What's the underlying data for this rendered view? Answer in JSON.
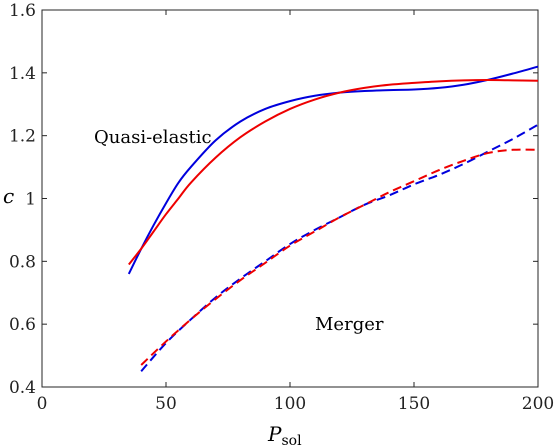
{
  "chart_data": {
    "type": "line",
    "title": "",
    "xlabel": "P",
    "xlabel_sub": "sol",
    "ylabel": "c",
    "xlim": [
      0,
      200
    ],
    "ylim": [
      0.4,
      1.6
    ],
    "xticks": [
      0,
      50,
      100,
      150,
      200
    ],
    "yticks": [
      0.4,
      0.6,
      0.8,
      1,
      1.2,
      1.4,
      1.6
    ],
    "xtick_labels": [
      "0",
      "50",
      "100",
      "150",
      "200"
    ],
    "ytick_labels": [
      "0.4",
      "0.6",
      "0.8",
      "1",
      "1.2",
      "1.4",
      "1.6"
    ],
    "grid": false,
    "legend": "none",
    "annotations": [
      {
        "text": "Quasi-elastic",
        "x": 20,
        "y": 1.2
      },
      {
        "text": "Merger",
        "x": 110,
        "y": 0.6
      }
    ],
    "series": [
      {
        "style": "solid",
        "color": "#0000dd",
        "x": [
          35,
          40,
          45,
          50,
          55,
          60,
          70,
          80,
          90,
          100,
          110,
          120,
          130,
          140,
          150,
          160,
          170,
          180,
          190,
          200
        ],
        "y": [
          0.76,
          0.84,
          0.915,
          0.985,
          1.05,
          1.1,
          1.185,
          1.245,
          1.285,
          1.31,
          1.327,
          1.337,
          1.342,
          1.345,
          1.347,
          1.352,
          1.362,
          1.378,
          1.398,
          1.42
        ]
      },
      {
        "style": "solid",
        "color": "#ee0000",
        "x": [
          35,
          40,
          45,
          50,
          55,
          60,
          70,
          80,
          90,
          100,
          110,
          120,
          130,
          140,
          150,
          160,
          170,
          180,
          190,
          200
        ],
        "y": [
          0.79,
          0.84,
          0.895,
          0.95,
          1.0,
          1.05,
          1.13,
          1.195,
          1.245,
          1.285,
          1.315,
          1.337,
          1.352,
          1.362,
          1.368,
          1.373,
          1.376,
          1.377,
          1.376,
          1.375
        ]
      },
      {
        "style": "dashed",
        "color": "#0000dd",
        "x": [
          40,
          50,
          60,
          70,
          80,
          90,
          100,
          110,
          120,
          130,
          140,
          150,
          160,
          170,
          180,
          190,
          200
        ],
        "y": [
          0.45,
          0.54,
          0.615,
          0.685,
          0.745,
          0.8,
          0.855,
          0.9,
          0.94,
          0.98,
          1.01,
          1.045,
          1.075,
          1.11,
          1.15,
          1.19,
          1.235
        ]
      },
      {
        "style": "dashed",
        "color": "#ee0000",
        "x": [
          40,
          50,
          60,
          70,
          80,
          90,
          100,
          110,
          120,
          130,
          140,
          150,
          160,
          170,
          180,
          190,
          200
        ],
        "y": [
          0.47,
          0.545,
          0.615,
          0.68,
          0.74,
          0.795,
          0.85,
          0.895,
          0.94,
          0.98,
          1.02,
          1.055,
          1.09,
          1.12,
          1.145,
          1.155,
          1.155
        ]
      }
    ]
  }
}
